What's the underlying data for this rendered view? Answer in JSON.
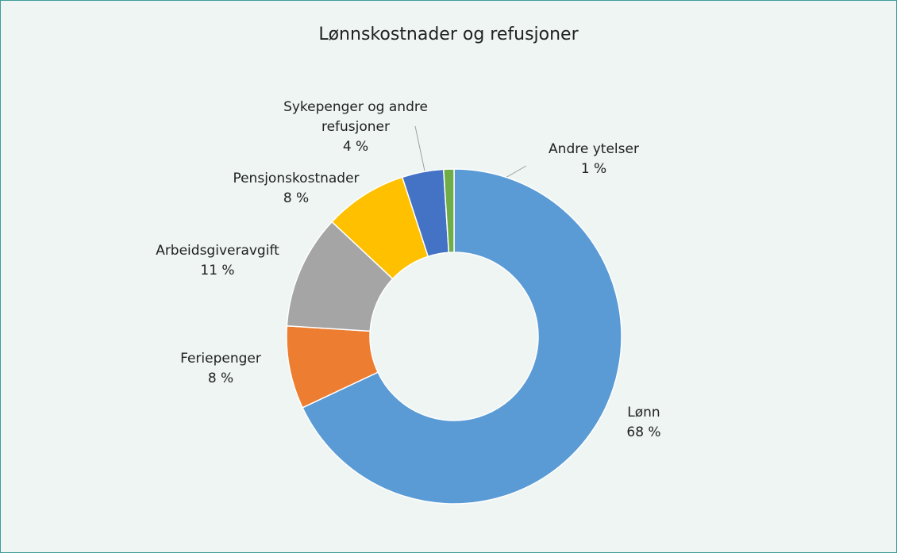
{
  "chart_data": {
    "type": "donut",
    "title": "Lønnskostnader og refusjoner",
    "categories": [
      "Lønn",
      "Feriepenger",
      "Arbeidsgiveravgift",
      "Pensjonskostnader",
      "Sykepenger og andre refusjoner",
      "Andre ytelser"
    ],
    "values": [
      68,
      8,
      11,
      8,
      4,
      1
    ],
    "value_labels": [
      "68 %",
      "8 %",
      "11 %",
      "8 %",
      "4 %",
      "1 %"
    ],
    "colors": [
      "#5b9bd5",
      "#ed7d31",
      "#a5a5a5",
      "#ffc000",
      "#4472c4",
      "#70ad47"
    ]
  }
}
